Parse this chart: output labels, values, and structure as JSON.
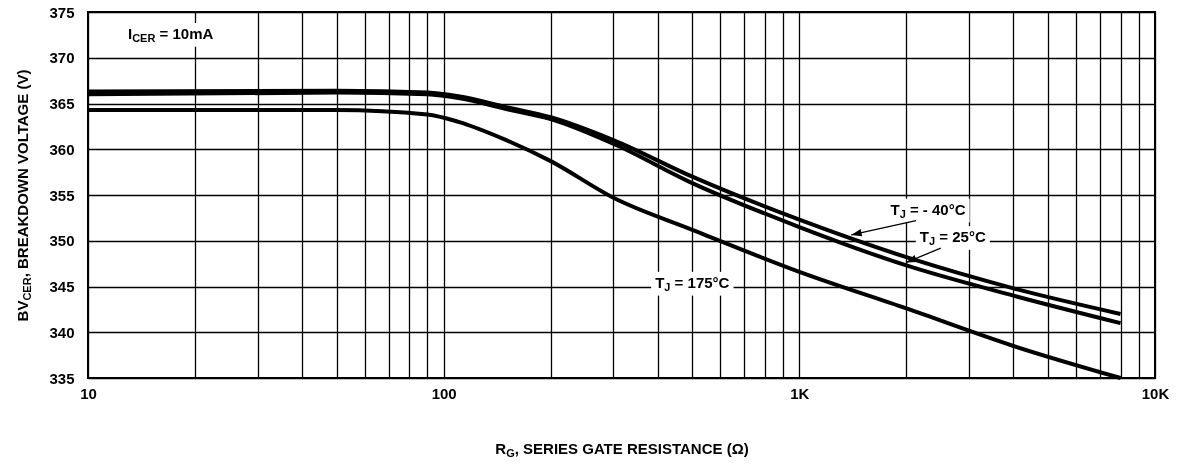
{
  "chart_data": {
    "type": "line",
    "xlabel": "R$_{G}$, SERIES GATE RESISTANCE (Ω)",
    "ylabel": "BV$_{CER}$, BREAKDOWN VOLTAGE (V)",
    "annotations": [
      "I$_{CER}$ = 10mA"
    ],
    "log": "x",
    "grid": true,
    "marker": "none",
    "line_style": "solid",
    "xlim": [
      10,
      10000
    ],
    "ylim": [
      335,
      375
    ],
    "xticks": [
      10,
      {
        "value": 20,
        "label": null
      },
      {
        "value": 30,
        "label": null
      },
      {
        "value": 40,
        "label": null
      },
      {
        "value": 50,
        "label": null
      },
      {
        "value": 60,
        "label": null
      },
      {
        "value": 70,
        "label": null
      },
      {
        "value": 80,
        "label": null
      },
      {
        "value": 90,
        "label": null
      },
      100,
      {
        "value": 200,
        "label": null
      },
      {
        "value": 300,
        "label": null
      },
      {
        "value": 400,
        "label": null
      },
      {
        "value": 500,
        "label": null
      },
      {
        "value": 600,
        "label": null
      },
      {
        "value": 700,
        "label": null
      },
      {
        "value": 800,
        "label": null
      },
      {
        "value": 900,
        "label": null
      },
      {
        "value": 1000,
        "label": "1K"
      },
      {
        "value": 2000,
        "label": null
      },
      {
        "value": 3000,
        "label": null
      },
      {
        "value": 4000,
        "label": null
      },
      {
        "value": 5000,
        "label": null
      },
      {
        "value": 6000,
        "label": null
      },
      {
        "value": 7000,
        "label": null
      },
      {
        "value": 8000,
        "label": null
      },
      {
        "value": 9000,
        "label": null
      },
      {
        "value": 10000,
        "label": "10K"
      }
    ],
    "yticks": [
      335,
      340,
      345,
      350,
      355,
      360,
      365,
      370,
      375
    ],
    "x": [
      10,
      50,
      90,
      110,
      150,
      200,
      300,
      500,
      1000,
      2000,
      4000,
      8000
    ],
    "series": [
      {
        "name": "T$_{J}$ = - 40°C",
        "color": "#000000",
        "values": [
          366.3,
          366.4,
          366.2,
          365.8,
          364.6,
          363.5,
          361.0,
          357.0,
          352.3,
          348.2,
          344.8,
          342.0
        ]
      },
      {
        "name": "T$_{J}$ = 25°C",
        "color": "#000000",
        "values": [
          366.0,
          366.2,
          366.0,
          365.6,
          364.4,
          363.3,
          360.6,
          356.3,
          351.5,
          347.3,
          344.0,
          341.0
        ]
      },
      {
        "name": "T$_{J}$ = 175°C",
        "color": "#000000",
        "values": [
          364.3,
          364.3,
          363.8,
          363.0,
          361.0,
          358.7,
          354.7,
          351.2,
          346.6,
          342.6,
          338.5,
          335.0
        ]
      }
    ]
  }
}
